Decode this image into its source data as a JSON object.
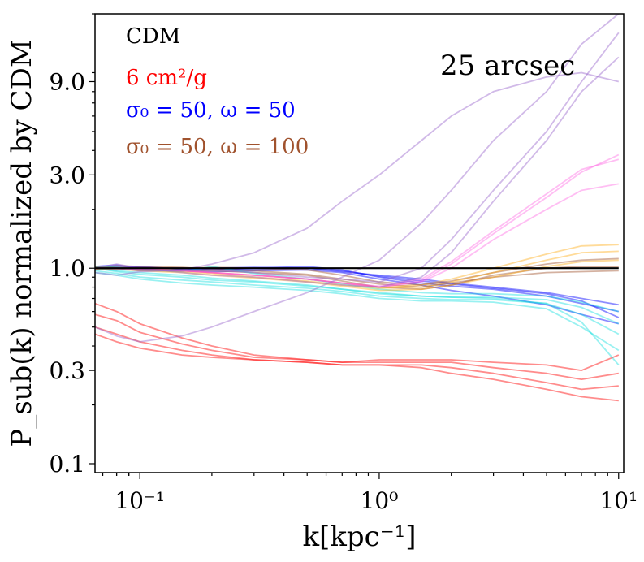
{
  "chart_data": {
    "type": "line",
    "xscale": "log",
    "yscale": "log",
    "xlim": [
      0.065,
      10.5
    ],
    "ylim": [
      0.09,
      20
    ],
    "xlabel": "k[kpc⁻¹]",
    "ylabel": "P_sub(k) normalized by CDM",
    "annotation": "25 arcsec",
    "x_ticks": [
      {
        "value": 0.1,
        "label": "10⁻¹"
      },
      {
        "value": 1,
        "label": "10⁰"
      },
      {
        "value": 10,
        "label": "10¹"
      }
    ],
    "y_ticks": [
      {
        "value": 0.1,
        "label": "0.1"
      },
      {
        "value": 0.3,
        "label": "0.3"
      },
      {
        "value": 1.0,
        "label": "1.0"
      },
      {
        "value": 3.0,
        "label": "3.0"
      },
      {
        "value": 9.0,
        "label": "9.0"
      }
    ],
    "legend": [
      {
        "label": "CDM",
        "color": "#000000"
      },
      {
        "label": "6 cm²/g",
        "color": "#ff0000"
      },
      {
        "label": "σ₀ = 50, ω = 50",
        "color": "#0000ff"
      },
      {
        "label": "σ₀ = 50, ω = 100",
        "color": "#a0522d"
      }
    ],
    "x": [
      0.065,
      0.08,
      0.1,
      0.15,
      0.2,
      0.3,
      0.5,
      0.7,
      1.0,
      1.5,
      2.0,
      3.0,
      5.0,
      7.0,
      10.0
    ],
    "series": [
      {
        "name": "CDM",
        "color": "#000000",
        "opacity": 1.0,
        "width": 2.2,
        "values": [
          1.0,
          1.0,
          1.0,
          1.0,
          1.0,
          1.0,
          1.0,
          1.0,
          1.0,
          1.0,
          1.0,
          1.0,
          1.0,
          1.0,
          1.0
        ]
      },
      {
        "name": "sidm-6-1",
        "color": "#ff0000",
        "opacity": 0.45,
        "width": 1.8,
        "values": [
          0.66,
          0.6,
          0.52,
          0.44,
          0.4,
          0.36,
          0.34,
          0.33,
          0.34,
          0.34,
          0.34,
          0.33,
          0.32,
          0.3,
          0.36
        ]
      },
      {
        "name": "sidm-6-2",
        "color": "#ff0000",
        "opacity": 0.45,
        "width": 1.8,
        "values": [
          0.58,
          0.54,
          0.47,
          0.41,
          0.38,
          0.35,
          0.34,
          0.33,
          0.33,
          0.33,
          0.33,
          0.31,
          0.29,
          0.27,
          0.29
        ]
      },
      {
        "name": "sidm-6-3",
        "color": "#ff0000",
        "opacity": 0.45,
        "width": 1.8,
        "values": [
          0.5,
          0.46,
          0.42,
          0.38,
          0.36,
          0.34,
          0.33,
          0.32,
          0.32,
          0.32,
          0.31,
          0.29,
          0.26,
          0.24,
          0.25
        ]
      },
      {
        "name": "sidm-6-4",
        "color": "#ff0000",
        "opacity": 0.45,
        "width": 1.8,
        "values": [
          0.46,
          0.42,
          0.39,
          0.36,
          0.35,
          0.34,
          0.33,
          0.32,
          0.32,
          0.31,
          0.29,
          0.27,
          0.24,
          0.22,
          0.21
        ]
      },
      {
        "name": "sidm-50-50-1",
        "color": "#0000ff",
        "opacity": 0.45,
        "width": 1.8,
        "values": [
          1.0,
          0.98,
          1.02,
          0.99,
          0.98,
          1.0,
          1.02,
          0.98,
          0.9,
          0.84,
          0.81,
          0.78,
          0.72,
          0.66,
          0.6
        ]
      },
      {
        "name": "sidm-50-50-2",
        "color": "#0000ff",
        "opacity": 0.45,
        "width": 1.8,
        "values": [
          1.02,
          1.04,
          1.0,
          1.0,
          0.99,
          0.98,
          1.0,
          0.96,
          0.92,
          0.88,
          0.84,
          0.8,
          0.75,
          0.7,
          0.65
        ]
      },
      {
        "name": "sidm-50-50-3",
        "color": "#0000ff",
        "opacity": 0.45,
        "width": 1.8,
        "values": [
          0.98,
          1.0,
          0.97,
          0.97,
          0.96,
          0.97,
          0.98,
          0.95,
          0.88,
          0.82,
          0.77,
          0.72,
          0.65,
          0.58,
          0.52
        ]
      },
      {
        "name": "sidm-50-50-4",
        "color": "#0000ff",
        "opacity": 0.45,
        "width": 1.8,
        "values": [
          1.0,
          1.02,
          1.01,
          0.99,
          1.0,
          1.01,
          1.0,
          0.97,
          0.91,
          0.86,
          0.83,
          0.79,
          0.74,
          0.68,
          0.56
        ]
      },
      {
        "name": "sidm-50-100-1",
        "color": "#a0522d",
        "opacity": 0.45,
        "width": 1.8,
        "values": [
          1.02,
          1.01,
          1.0,
          1.0,
          1.01,
          1.0,
          0.98,
          0.92,
          0.85,
          0.82,
          0.86,
          0.95,
          1.05,
          1.1,
          1.12
        ]
      },
      {
        "name": "sidm-50-100-2",
        "color": "#a0522d",
        "opacity": 0.45,
        "width": 1.8,
        "values": [
          0.98,
          1.0,
          0.99,
          0.98,
          0.97,
          0.95,
          0.92,
          0.86,
          0.8,
          0.78,
          0.82,
          0.92,
          1.0,
          1.02,
          1.02
        ]
      },
      {
        "name": "sidm-50-100-3",
        "color": "#a0522d",
        "opacity": 0.45,
        "width": 1.8,
        "values": [
          1.0,
          1.03,
          1.02,
          1.01,
          0.99,
          0.97,
          0.93,
          0.88,
          0.83,
          0.8,
          0.84,
          0.9,
          0.95,
          0.96,
          0.97
        ]
      },
      {
        "name": "cyan-1",
        "color": "#00dddd",
        "opacity": 0.4,
        "width": 1.8,
        "values": [
          1.0,
          0.97,
          0.95,
          0.92,
          0.89,
          0.86,
          0.82,
          0.78,
          0.74,
          0.72,
          0.71,
          0.71,
          0.69,
          0.63,
          0.52
        ]
      },
      {
        "name": "cyan-2",
        "color": "#00dddd",
        "opacity": 0.4,
        "width": 1.8,
        "values": [
          0.97,
          0.94,
          0.9,
          0.87,
          0.85,
          0.82,
          0.79,
          0.76,
          0.72,
          0.7,
          0.69,
          0.69,
          0.66,
          0.58,
          0.46
        ]
      },
      {
        "name": "cyan-3",
        "color": "#00dddd",
        "opacity": 0.4,
        "width": 1.8,
        "values": [
          1.02,
          1.01,
          0.98,
          0.96,
          1.02,
          0.94,
          0.88,
          0.83,
          0.78,
          0.75,
          0.74,
          0.74,
          0.72,
          0.67,
          0.6
        ]
      },
      {
        "name": "cyan-4",
        "color": "#00dddd",
        "opacity": 0.4,
        "width": 1.8,
        "values": [
          0.95,
          0.92,
          0.88,
          0.84,
          0.82,
          0.8,
          0.77,
          0.74,
          0.7,
          0.68,
          0.68,
          0.67,
          0.62,
          0.5,
          0.38
        ]
      },
      {
        "name": "cyan-5",
        "color": "#00dddd",
        "opacity": 0.4,
        "width": 1.8,
        "values": [
          1.0,
          0.96,
          0.93,
          0.9,
          0.87,
          0.85,
          0.81,
          0.78,
          0.75,
          0.72,
          0.71,
          0.7,
          0.66,
          0.53,
          0.32
        ]
      },
      {
        "name": "orange-1",
        "color": "#ffa500",
        "opacity": 0.4,
        "width": 1.8,
        "values": [
          1.0,
          1.0,
          0.99,
          0.97,
          0.95,
          0.92,
          0.88,
          0.84,
          0.8,
          0.82,
          0.88,
          1.0,
          1.18,
          1.3,
          1.32
        ]
      },
      {
        "name": "orange-2",
        "color": "#ffa500",
        "opacity": 0.4,
        "width": 1.8,
        "values": [
          1.01,
          1.0,
          0.98,
          0.96,
          0.94,
          0.9,
          0.86,
          0.82,
          0.79,
          0.8,
          0.85,
          0.95,
          1.1,
          1.2,
          1.22
        ]
      },
      {
        "name": "orange-3",
        "color": "#ffa500",
        "opacity": 0.4,
        "width": 1.8,
        "values": [
          0.99,
          0.99,
          0.97,
          0.95,
          0.92,
          0.89,
          0.85,
          0.81,
          0.77,
          0.78,
          0.82,
          0.9,
          1.02,
          1.08,
          1.1
        ]
      },
      {
        "name": "pink-1",
        "color": "#ff44dd",
        "opacity": 0.35,
        "width": 1.8,
        "values": [
          1.0,
          1.0,
          0.99,
          0.97,
          0.95,
          0.92,
          0.88,
          0.84,
          0.8,
          0.86,
          1.05,
          1.5,
          2.3,
          3.1,
          3.8
        ]
      },
      {
        "name": "pink-2",
        "color": "#ff44dd",
        "opacity": 0.35,
        "width": 1.8,
        "values": [
          1.0,
          1.0,
          0.99,
          0.97,
          0.95,
          0.92,
          0.88,
          0.84,
          0.81,
          0.88,
          1.08,
          1.55,
          2.4,
          3.2,
          3.6
        ]
      },
      {
        "name": "pink-3",
        "color": "#ff44dd",
        "opacity": 0.35,
        "width": 1.8,
        "values": [
          1.0,
          1.0,
          0.99,
          0.97,
          0.95,
          0.92,
          0.88,
          0.84,
          0.8,
          0.85,
          1.0,
          1.4,
          2.0,
          2.5,
          2.7
        ]
      },
      {
        "name": "purple-1",
        "color": "#9966cc",
        "opacity": 0.45,
        "width": 1.8,
        "values": [
          0.95,
          0.92,
          0.96,
          0.98,
          1.05,
          1.2,
          1.6,
          2.2,
          3.0,
          4.5,
          6.0,
          8.0,
          9.5,
          10.0,
          9.0
        ]
      },
      {
        "name": "purple-2",
        "color": "#9966cc",
        "opacity": 0.45,
        "width": 1.8,
        "values": [
          0.5,
          0.45,
          0.42,
          0.45,
          0.5,
          0.6,
          0.75,
          0.9,
          1.1,
          1.7,
          2.5,
          4.5,
          8.0,
          14.0,
          20.0
        ]
      },
      {
        "name": "purple-3",
        "color": "#9966cc",
        "opacity": 0.45,
        "width": 1.8,
        "values": [
          1.0,
          1.0,
          0.98,
          0.97,
          0.98,
          0.95,
          0.9,
          0.88,
          0.85,
          1.0,
          1.4,
          2.5,
          5.0,
          9.0,
          16.0
        ]
      },
      {
        "name": "purple-4",
        "color": "#9966cc",
        "opacity": 0.45,
        "width": 1.8,
        "values": [
          1.0,
          1.05,
          1.0,
          0.95,
          0.92,
          0.9,
          0.85,
          0.82,
          0.8,
          0.9,
          1.2,
          2.2,
          4.5,
          8.0,
          12.0
        ]
      }
    ]
  }
}
